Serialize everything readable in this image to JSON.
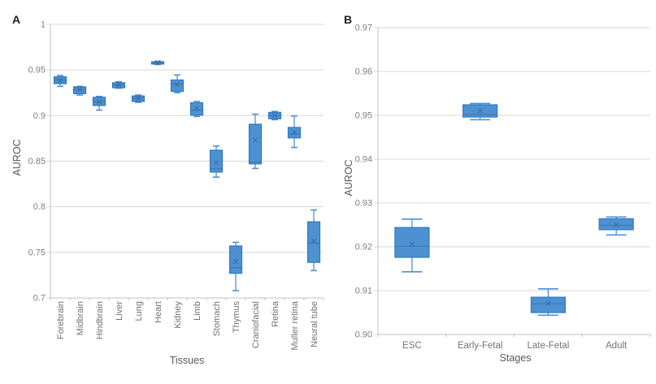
{
  "figure": {
    "panel_a": {
      "letter": "A",
      "xlabel": "Tissues",
      "ylabel": "AUROC"
    },
    "panel_b": {
      "letter": "B",
      "xlabel": "Stages",
      "ylabel": "AUROC"
    }
  },
  "style": {
    "box_fill": "#4e91d2",
    "box_stroke": "#2f7abf",
    "median_color": "#3f74a3",
    "mean_color": "#3a6ea5",
    "whisker_color": "#4e91d2",
    "gridline_color": "#d9d9d9",
    "axis_color": "#c0c0c0",
    "tick_text_color": "#7f7f7f",
    "category_text_color": "#737373"
  },
  "chart_data": [
    {
      "type": "boxplot",
      "panel": "A",
      "xlabel": "Tissues",
      "ylabel": "AUROC",
      "ylim": [
        0.7,
        1.0
      ],
      "ytick_values": [
        1,
        0.95,
        0.9,
        0.85,
        0.8,
        0.75,
        0.7
      ],
      "ytick_labels": [
        "1",
        "0.95",
        "0.9",
        "0.85",
        "0.8",
        "0.75",
        "0.7"
      ],
      "grid": true,
      "categories": [
        "Forebrain",
        "Midbrain",
        "Hindbrain",
        "Liver",
        "Lung",
        "Heart",
        "Kidney",
        "Limb",
        "Stomach",
        "Thymus",
        "Craniofacial",
        "Retina",
        "Muller retina",
        "Neural tube"
      ],
      "boxes": [
        {
          "category": "Forebrain",
          "min": 0.932,
          "q1": 0.935,
          "median": 0.939,
          "mean": 0.9385,
          "q3": 0.9425,
          "max": 0.944
        },
        {
          "category": "Midbrain",
          "min": 0.9225,
          "q1": 0.924,
          "median": 0.9285,
          "mean": 0.9285,
          "q3": 0.9315,
          "max": 0.932
        },
        {
          "category": "Hindbrain",
          "min": 0.906,
          "q1": 0.911,
          "median": 0.9155,
          "mean": 0.915,
          "q3": 0.92,
          "max": 0.921
        },
        {
          "category": "Liver",
          "min": 0.93,
          "q1": 0.9305,
          "median": 0.9335,
          "mean": 0.9335,
          "q3": 0.936,
          "max": 0.937
        },
        {
          "category": "Lung",
          "min": 0.9145,
          "q1": 0.9155,
          "median": 0.919,
          "mean": 0.919,
          "q3": 0.9215,
          "max": 0.9225
        },
        {
          "category": "Heart",
          "min": 0.956,
          "q1": 0.9565,
          "median": 0.958,
          "mean": 0.958,
          "q3": 0.959,
          "max": 0.9595
        },
        {
          "category": "Kidney",
          "min": 0.925,
          "q1": 0.9265,
          "median": 0.9345,
          "mean": 0.934,
          "q3": 0.939,
          "max": 0.9445
        },
        {
          "category": "Limb",
          "min": 0.899,
          "q1": 0.9005,
          "median": 0.906,
          "mean": 0.908,
          "q3": 0.914,
          "max": 0.9155
        },
        {
          "category": "Stomach",
          "min": 0.8325,
          "q1": 0.838,
          "median": 0.8415,
          "mean": 0.8485,
          "q3": 0.862,
          "max": 0.8665
        },
        {
          "category": "Thymus",
          "min": 0.708,
          "q1": 0.727,
          "median": 0.733,
          "mean": 0.74,
          "q3": 0.757,
          "max": 0.761
        },
        {
          "category": "Craniofacial",
          "min": 0.842,
          "q1": 0.847,
          "median": 0.849,
          "mean": 0.873,
          "q3": 0.8905,
          "max": 0.9015
        },
        {
          "category": "Retina",
          "min": 0.8955,
          "q1": 0.8965,
          "median": 0.9,
          "mean": 0.9,
          "q3": 0.9035,
          "max": 0.9045
        },
        {
          "category": "Muller retina",
          "min": 0.865,
          "q1": 0.8755,
          "median": 0.88,
          "mean": 0.8815,
          "q3": 0.887,
          "max": 0.8995
        },
        {
          "category": "Neural tube",
          "min": 0.73,
          "q1": 0.739,
          "median": 0.76,
          "mean": 0.7625,
          "q3": 0.7835,
          "max": 0.7965
        }
      ]
    },
    {
      "type": "boxplot",
      "panel": "B",
      "xlabel": "Stages",
      "ylabel": "AUROC",
      "ylim": [
        0.9,
        0.97
      ],
      "ytick_values": [
        0.97,
        0.96,
        0.95,
        0.94,
        0.93,
        0.92,
        0.91,
        0.9
      ],
      "ytick_labels": [
        "0.97",
        "0.96",
        "0.95",
        "0.94",
        "0.93",
        "0.92",
        "0.91",
        "0.90"
      ],
      "grid": true,
      "categories": [
        "ESC",
        "Early-Fetal",
        "Late-Fetal",
        "Adult"
      ],
      "boxes": [
        {
          "category": "ESC",
          "min": 0.9143,
          "q1": 0.9176,
          "median": 0.9201,
          "mean": 0.9206,
          "q3": 0.9244,
          "max": 0.9263
        },
        {
          "category": "Early-Fetal",
          "min": 0.949,
          "q1": 0.9496,
          "median": 0.9502,
          "mean": 0.951,
          "q3": 0.9524,
          "max": 0.9527
        },
        {
          "category": "Late-Fetal",
          "min": 0.9044,
          "q1": 0.905,
          "median": 0.907,
          "mean": 0.9071,
          "q3": 0.9085,
          "max": 0.9104
        },
        {
          "category": "Adult",
          "min": 0.9227,
          "q1": 0.9239,
          "median": 0.9249,
          "mean": 0.925,
          "q3": 0.9264,
          "max": 0.9268
        }
      ]
    }
  ]
}
